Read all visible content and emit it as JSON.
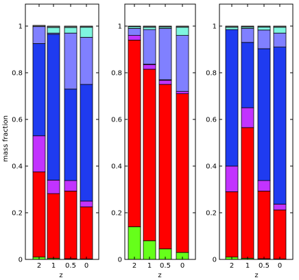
{
  "chart_data": {
    "type": "bar",
    "layout": "three stacked-bar panels side by side",
    "stacking": "each bar stacks components from bottom (green) to top (aquamarine) to a total of 1",
    "ylabel": "mass fraction",
    "ylim": [
      0,
      1
    ],
    "yticks": [
      0,
      0.2,
      0.4,
      0.6,
      0.8,
      1
    ],
    "ytick_labels": [
      "0",
      "0.2",
      "0.4",
      "0.6",
      "0.8",
      "1"
    ],
    "xlabel": "z",
    "categories": [
      "2",
      "1",
      "0.5",
      "0"
    ],
    "grid": false,
    "component_colors": [
      "#66ff1a",
      "#ff0000",
      "#c233ff",
      "#1f3bf0",
      "#8080ff",
      "#7ff5df",
      "#707070"
    ],
    "panels": [
      {
        "series": [
          {
            "values": [
              0.01,
              0.005,
              0.003,
              0.002
            ]
          },
          {
            "values": [
              0.365,
              0.277,
              0.29,
              0.223
            ]
          },
          {
            "values": [
              0.155,
              0.058,
              0.045,
              0.025
            ]
          },
          {
            "values": [
              0.395,
              0.625,
              0.392,
              0.5
            ]
          },
          {
            "values": [
              0.073,
              0.005,
              0.24,
              0.202
            ]
          },
          {
            "values": [
              0.0,
              0.024,
              0.024,
              0.043
            ]
          },
          {
            "values": [
              0.005,
              0.006,
              0.006,
              0.005
            ]
          }
        ]
      },
      {
        "series": [
          {
            "values": [
              0.14,
              0.08,
              0.045,
              0.03
            ]
          },
          {
            "values": [
              0.8,
              0.735,
              0.705,
              0.68
            ]
          },
          {
            "values": [
              0.02,
              0.02,
              0.018,
              0.01
            ]
          },
          {
            "values": [
              0.0,
              0.002,
              0.002,
              0.0
            ]
          },
          {
            "values": [
              0.03,
              0.148,
              0.22,
              0.24
            ]
          },
          {
            "values": [
              0.007,
              0.01,
              0.006,
              0.035
            ]
          },
          {
            "values": [
              0.003,
              0.005,
              0.004,
              0.005
            ]
          }
        ]
      },
      {
        "series": [
          {
            "values": [
              0.01,
              0.005,
              0.003,
              0.002
            ]
          },
          {
            "values": [
              0.28,
              0.56,
              0.29,
              0.21
            ]
          },
          {
            "values": [
              0.11,
              0.085,
              0.045,
              0.025
            ]
          },
          {
            "values": [
              0.585,
              0.28,
              0.565,
              0.673
            ]
          },
          {
            "values": [
              0.0,
              0.06,
              0.08,
              0.06
            ]
          },
          {
            "values": [
              0.01,
              0.006,
              0.013,
              0.025
            ]
          },
          {
            "values": [
              0.005,
              0.004,
              0.004,
              0.005
            ]
          }
        ]
      }
    ]
  }
}
